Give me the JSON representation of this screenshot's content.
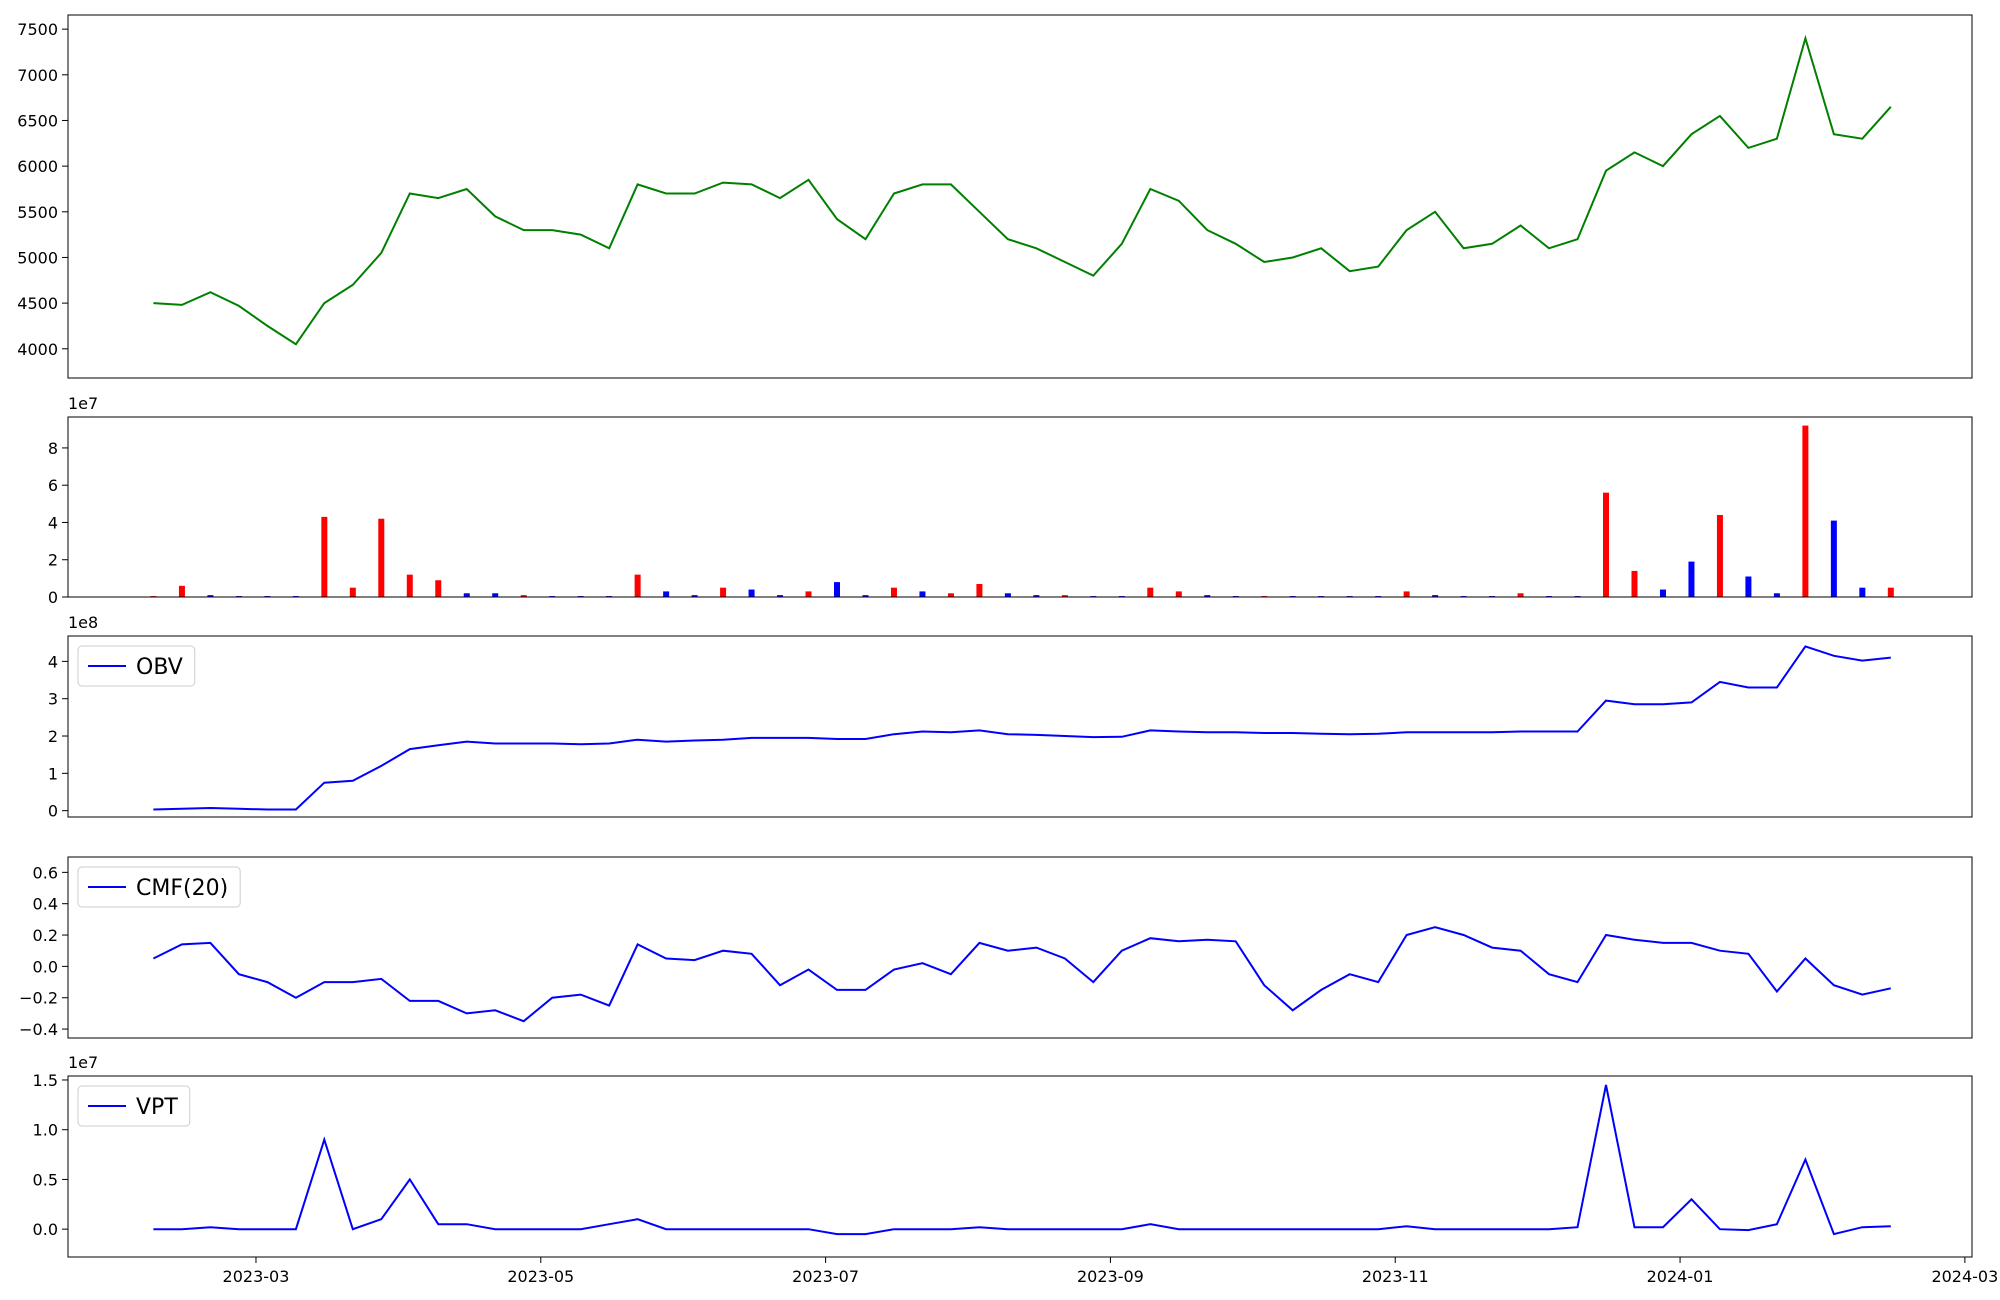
{
  "chart_data": [
    {
      "type": "line",
      "color": "green",
      "x": [
        2.28,
        2.48,
        2.68,
        2.88,
        3.08,
        3.28,
        3.48,
        3.68,
        3.88,
        4.08,
        4.28,
        4.48,
        4.68,
        4.88,
        5.08,
        5.28,
        5.48,
        5.68,
        5.88,
        6.08,
        6.28,
        6.48,
        6.68,
        6.88,
        7.08,
        7.28,
        7.48,
        7.68,
        7.88,
        8.08,
        8.28,
        8.48,
        8.68,
        8.88,
        9.08,
        9.28,
        9.48,
        9.68,
        9.88,
        10.08,
        10.28,
        10.48,
        10.68,
        10.88,
        11.08,
        11.28,
        11.48,
        11.68,
        11.88,
        12.08,
        12.28,
        12.48,
        12.68,
        12.88,
        13.08,
        13.28,
        13.48,
        13.68,
        13.88,
        14.08,
        14.28,
        14.48
      ],
      "values": [
        4500,
        4480,
        4620,
        4470,
        4250,
        4050,
        4500,
        4700,
        5050,
        5700,
        5650,
        5750,
        5450,
        5300,
        5300,
        5250,
        5100,
        5800,
        5700,
        5700,
        5820,
        5800,
        5650,
        5850,
        5420,
        5200,
        5700,
        5800,
        5800,
        5500,
        5200,
        5100,
        4950,
        4800,
        5150,
        5750,
        5620,
        5300,
        5150,
        4950,
        5000,
        5100,
        4850,
        4900,
        5300,
        5500,
        5100,
        5150,
        5350,
        5100,
        5200,
        5950,
        6150,
        6000,
        6350,
        6550,
        6200,
        6300,
        7400,
        6350,
        6300,
        6650
      ],
      "xlim": [
        1.68,
        15.05
      ],
      "ylim": [
        3680,
        7655
      ],
      "yticks": [
        4000,
        4500,
        5000,
        5500,
        6000,
        6500,
        7000,
        7500
      ]
    },
    {
      "type": "bar",
      "offset_label": "1e7",
      "x": [
        2.28,
        2.48,
        2.68,
        2.88,
        3.08,
        3.28,
        3.48,
        3.68,
        3.88,
        4.08,
        4.28,
        4.48,
        4.68,
        4.88,
        5.08,
        5.28,
        5.48,
        5.68,
        5.88,
        6.08,
        6.28,
        6.48,
        6.68,
        6.88,
        7.08,
        7.28,
        7.48,
        7.68,
        7.88,
        8.08,
        8.28,
        8.48,
        8.68,
        8.88,
        9.08,
        9.28,
        9.48,
        9.68,
        9.88,
        10.08,
        10.28,
        10.48,
        10.68,
        10.88,
        11.08,
        11.28,
        11.48,
        11.68,
        11.88,
        12.08,
        12.28,
        12.48,
        12.68,
        12.88,
        13.08,
        13.28,
        13.48,
        13.68,
        13.88,
        14.08,
        14.28,
        14.48
      ],
      "values": [
        500000,
        6000000,
        1000000,
        500000,
        500000,
        500000,
        43000000,
        5000000,
        42000000,
        12000000,
        9000000,
        2000000,
        2000000,
        1000000,
        500000,
        500000,
        500000,
        12000000,
        3000000,
        1000000,
        5000000,
        4000000,
        1000000,
        3000000,
        8000000,
        1000000,
        5000000,
        3000000,
        2000000,
        7000000,
        2000000,
        1000000,
        1000000,
        500000,
        500000,
        5000000,
        3000000,
        1000000,
        500000,
        500000,
        500000,
        500000,
        500000,
        500000,
        3000000,
        1000000,
        500000,
        500000,
        2000000,
        500000,
        500000,
        56000000,
        14000000,
        4000000,
        19000000,
        44000000,
        11000000,
        2000000,
        92000000,
        41000000,
        5000000,
        5000000
      ],
      "colors": [
        "red",
        "red",
        "blue",
        "blue",
        "blue",
        "blue",
        "red",
        "red",
        "red",
        "red",
        "red",
        "blue",
        "blue",
        "red",
        "blue",
        "blue",
        "blue",
        "red",
        "blue",
        "blue",
        "red",
        "blue",
        "blue",
        "red",
        "blue",
        "blue",
        "red",
        "blue",
        "red",
        "red",
        "blue",
        "blue",
        "red",
        "blue",
        "blue",
        "red",
        "red",
        "blue",
        "blue",
        "red",
        "blue",
        "blue",
        "blue",
        "blue",
        "red",
        "blue",
        "blue",
        "blue",
        "red",
        "blue",
        "blue",
        "red",
        "red",
        "blue",
        "blue",
        "red",
        "blue",
        "blue",
        "red",
        "blue",
        "blue",
        "red"
      ],
      "xlim": [
        1.68,
        15.05
      ],
      "ylim": [
        0,
        96600000
      ],
      "yticks": [
        0,
        {
          "value": 20000000,
          "label": "2"
        },
        {
          "value": 40000000,
          "label": "4"
        },
        {
          "value": 60000000,
          "label": "6"
        },
        {
          "value": 80000000,
          "label": "8"
        }
      ]
    },
    {
      "type": "line",
      "offset_label": "1e8",
      "legend": "upper left",
      "x": [
        2.28,
        2.48,
        2.68,
        2.88,
        3.08,
        3.28,
        3.48,
        3.68,
        3.88,
        4.08,
        4.28,
        4.48,
        4.68,
        4.88,
        5.08,
        5.28,
        5.48,
        5.68,
        5.88,
        6.08,
        6.28,
        6.48,
        6.68,
        6.88,
        7.08,
        7.28,
        7.48,
        7.68,
        7.88,
        8.08,
        8.28,
        8.48,
        8.68,
        8.88,
        9.08,
        9.28,
        9.48,
        9.68,
        9.88,
        10.08,
        10.28,
        10.48,
        10.68,
        10.88,
        11.08,
        11.28,
        11.48,
        11.68,
        11.88,
        12.08,
        12.28,
        12.48,
        12.68,
        12.88,
        13.08,
        13.28,
        13.48,
        13.68,
        13.88,
        14.08,
        14.28,
        14.48
      ],
      "series": [
        {
          "name": "OBV",
          "color": "blue",
          "values": [
            3000000,
            5000000,
            7000000,
            5000000,
            3000000,
            3000000,
            75000000,
            80000000,
            120000000,
            165000000,
            175000000,
            185000000,
            180000000,
            180000000,
            180000000,
            178000000,
            180000000,
            190000000,
            185000000,
            188000000,
            190000000,
            195000000,
            195000000,
            195000000,
            192000000,
            192000000,
            205000000,
            212000000,
            210000000,
            215000000,
            205000000,
            203000000,
            200000000,
            197000000,
            198000000,
            215000000,
            212000000,
            210000000,
            210000000,
            208000000,
            208000000,
            206000000,
            205000000,
            206000000,
            210000000,
            210000000,
            210000000,
            210000000,
            212000000,
            212000000,
            212000000,
            295000000,
            285000000,
            285000000,
            290000000,
            345000000,
            330000000,
            330000000,
            440000000,
            415000000,
            402000000,
            410000000
          ]
        }
      ],
      "xlim": [
        1.68,
        15.05
      ],
      "ylim": [
        -17000000,
        468000000
      ],
      "yticks": [
        0,
        {
          "value": 100000000,
          "label": "1"
        },
        {
          "value": 200000000,
          "label": "2"
        },
        {
          "value": 300000000,
          "label": "3"
        },
        {
          "value": 400000000,
          "label": "4"
        }
      ]
    },
    {
      "type": "line",
      "legend": "upper left",
      "x": [
        2.28,
        2.48,
        2.68,
        2.88,
        3.08,
        3.28,
        3.48,
        3.68,
        3.88,
        4.08,
        4.28,
        4.48,
        4.68,
        4.88,
        5.08,
        5.28,
        5.48,
        5.68,
        5.88,
        6.08,
        6.28,
        6.48,
        6.68,
        6.88,
        7.08,
        7.28,
        7.48,
        7.68,
        7.88,
        8.08,
        8.28,
        8.48,
        8.68,
        8.88,
        9.08,
        9.28,
        9.48,
        9.68,
        9.88,
        10.08,
        10.28,
        10.48,
        10.68,
        10.88,
        11.08,
        11.28,
        11.48,
        11.68,
        11.88,
        12.08,
        12.28,
        12.48,
        12.68,
        12.88,
        13.08,
        13.28,
        13.48,
        13.68,
        13.88,
        14.08,
        14.28,
        14.48
      ],
      "series": [
        {
          "name": "CMF(20)",
          "color": "blue",
          "values": [
            0.05,
            0.14,
            0.15,
            -0.05,
            -0.1,
            -0.2,
            -0.1,
            -0.1,
            -0.08,
            -0.22,
            -0.22,
            -0.3,
            -0.28,
            -0.35,
            -0.2,
            -0.18,
            -0.25,
            0.14,
            0.05,
            0.04,
            0.1,
            0.08,
            -0.12,
            -0.02,
            -0.15,
            -0.15,
            -0.02,
            0.02,
            -0.05,
            0.15,
            0.1,
            0.12,
            0.05,
            -0.1,
            0.1,
            0.18,
            0.16,
            0.17,
            0.16,
            -0.12,
            -0.28,
            -0.15,
            -0.05,
            -0.1,
            0.2,
            0.25,
            0.2,
            0.12,
            0.1,
            -0.05,
            -0.1,
            0.2,
            0.17,
            0.15,
            0.15,
            0.1,
            0.08,
            -0.16,
            0.05,
            -0.12,
            -0.18,
            -0.14
          ]
        }
      ],
      "xlim": [
        1.68,
        15.05
      ],
      "ylim": [
        -0.457,
        0.698
      ],
      "yticks": [
        {
          "value": -0.4,
          "label": "−0.4"
        },
        {
          "value": -0.2,
          "label": "−0.2"
        },
        {
          "value": 0,
          "label": "0.0"
        },
        0.2,
        0.4,
        0.6
      ]
    },
    {
      "type": "line",
      "offset_label": "1e7",
      "legend": "upper left",
      "x": [
        2.28,
        2.48,
        2.68,
        2.88,
        3.08,
        3.28,
        3.48,
        3.68,
        3.88,
        4.08,
        4.28,
        4.48,
        4.68,
        4.88,
        5.08,
        5.28,
        5.48,
        5.68,
        5.88,
        6.08,
        6.28,
        6.48,
        6.68,
        6.88,
        7.08,
        7.28,
        7.48,
        7.68,
        7.88,
        8.08,
        8.28,
        8.48,
        8.68,
        8.88,
        9.08,
        9.28,
        9.48,
        9.68,
        9.88,
        10.08,
        10.28,
        10.48,
        10.68,
        10.88,
        11.08,
        11.28,
        11.48,
        11.68,
        11.88,
        12.08,
        12.28,
        12.48,
        12.68,
        12.88,
        13.08,
        13.28,
        13.48,
        13.68,
        13.88,
        14.08,
        14.28,
        14.48
      ],
      "series": [
        {
          "name": "VPT",
          "color": "blue",
          "values": [
            0,
            0,
            200000,
            0,
            0,
            0,
            9000000,
            0,
            1000000,
            5000000,
            500000,
            500000,
            0,
            0,
            0,
            0,
            500000,
            1000000,
            0,
            0,
            0,
            0,
            0,
            0,
            -500000,
            -500000,
            0,
            0,
            0,
            200000,
            0,
            0,
            0,
            0,
            0,
            500000,
            0,
            0,
            0,
            0,
            0,
            0,
            0,
            0,
            300000,
            0,
            0,
            0,
            0,
            0,
            200000,
            14500000,
            200000,
            200000,
            3000000,
            0,
            -100000,
            500000,
            7000000,
            -500000,
            200000,
            300000
          ]
        }
      ],
      "xlim": [
        1.68,
        15.05
      ],
      "ylim": [
        -2800000,
        15400000
      ],
      "yticks": [
        {
          "value": 0,
          "label": "0.0"
        },
        {
          "value": 5000000,
          "label": "0.5"
        },
        {
          "value": 10000000,
          "label": "1.0"
        },
        {
          "value": 15000000,
          "label": "1.5"
        }
      ],
      "xticks": [
        {
          "value": 3,
          "label": "2023-03"
        },
        {
          "value": 5,
          "label": "2023-05"
        },
        {
          "value": 7,
          "label": "2023-07"
        },
        {
          "value": 9,
          "label": "2023-09"
        },
        {
          "value": 11,
          "label": "2023-11"
        },
        {
          "value": 13,
          "label": "2024-01"
        },
        {
          "value": 15,
          "label": "2024-03"
        }
      ]
    }
  ]
}
